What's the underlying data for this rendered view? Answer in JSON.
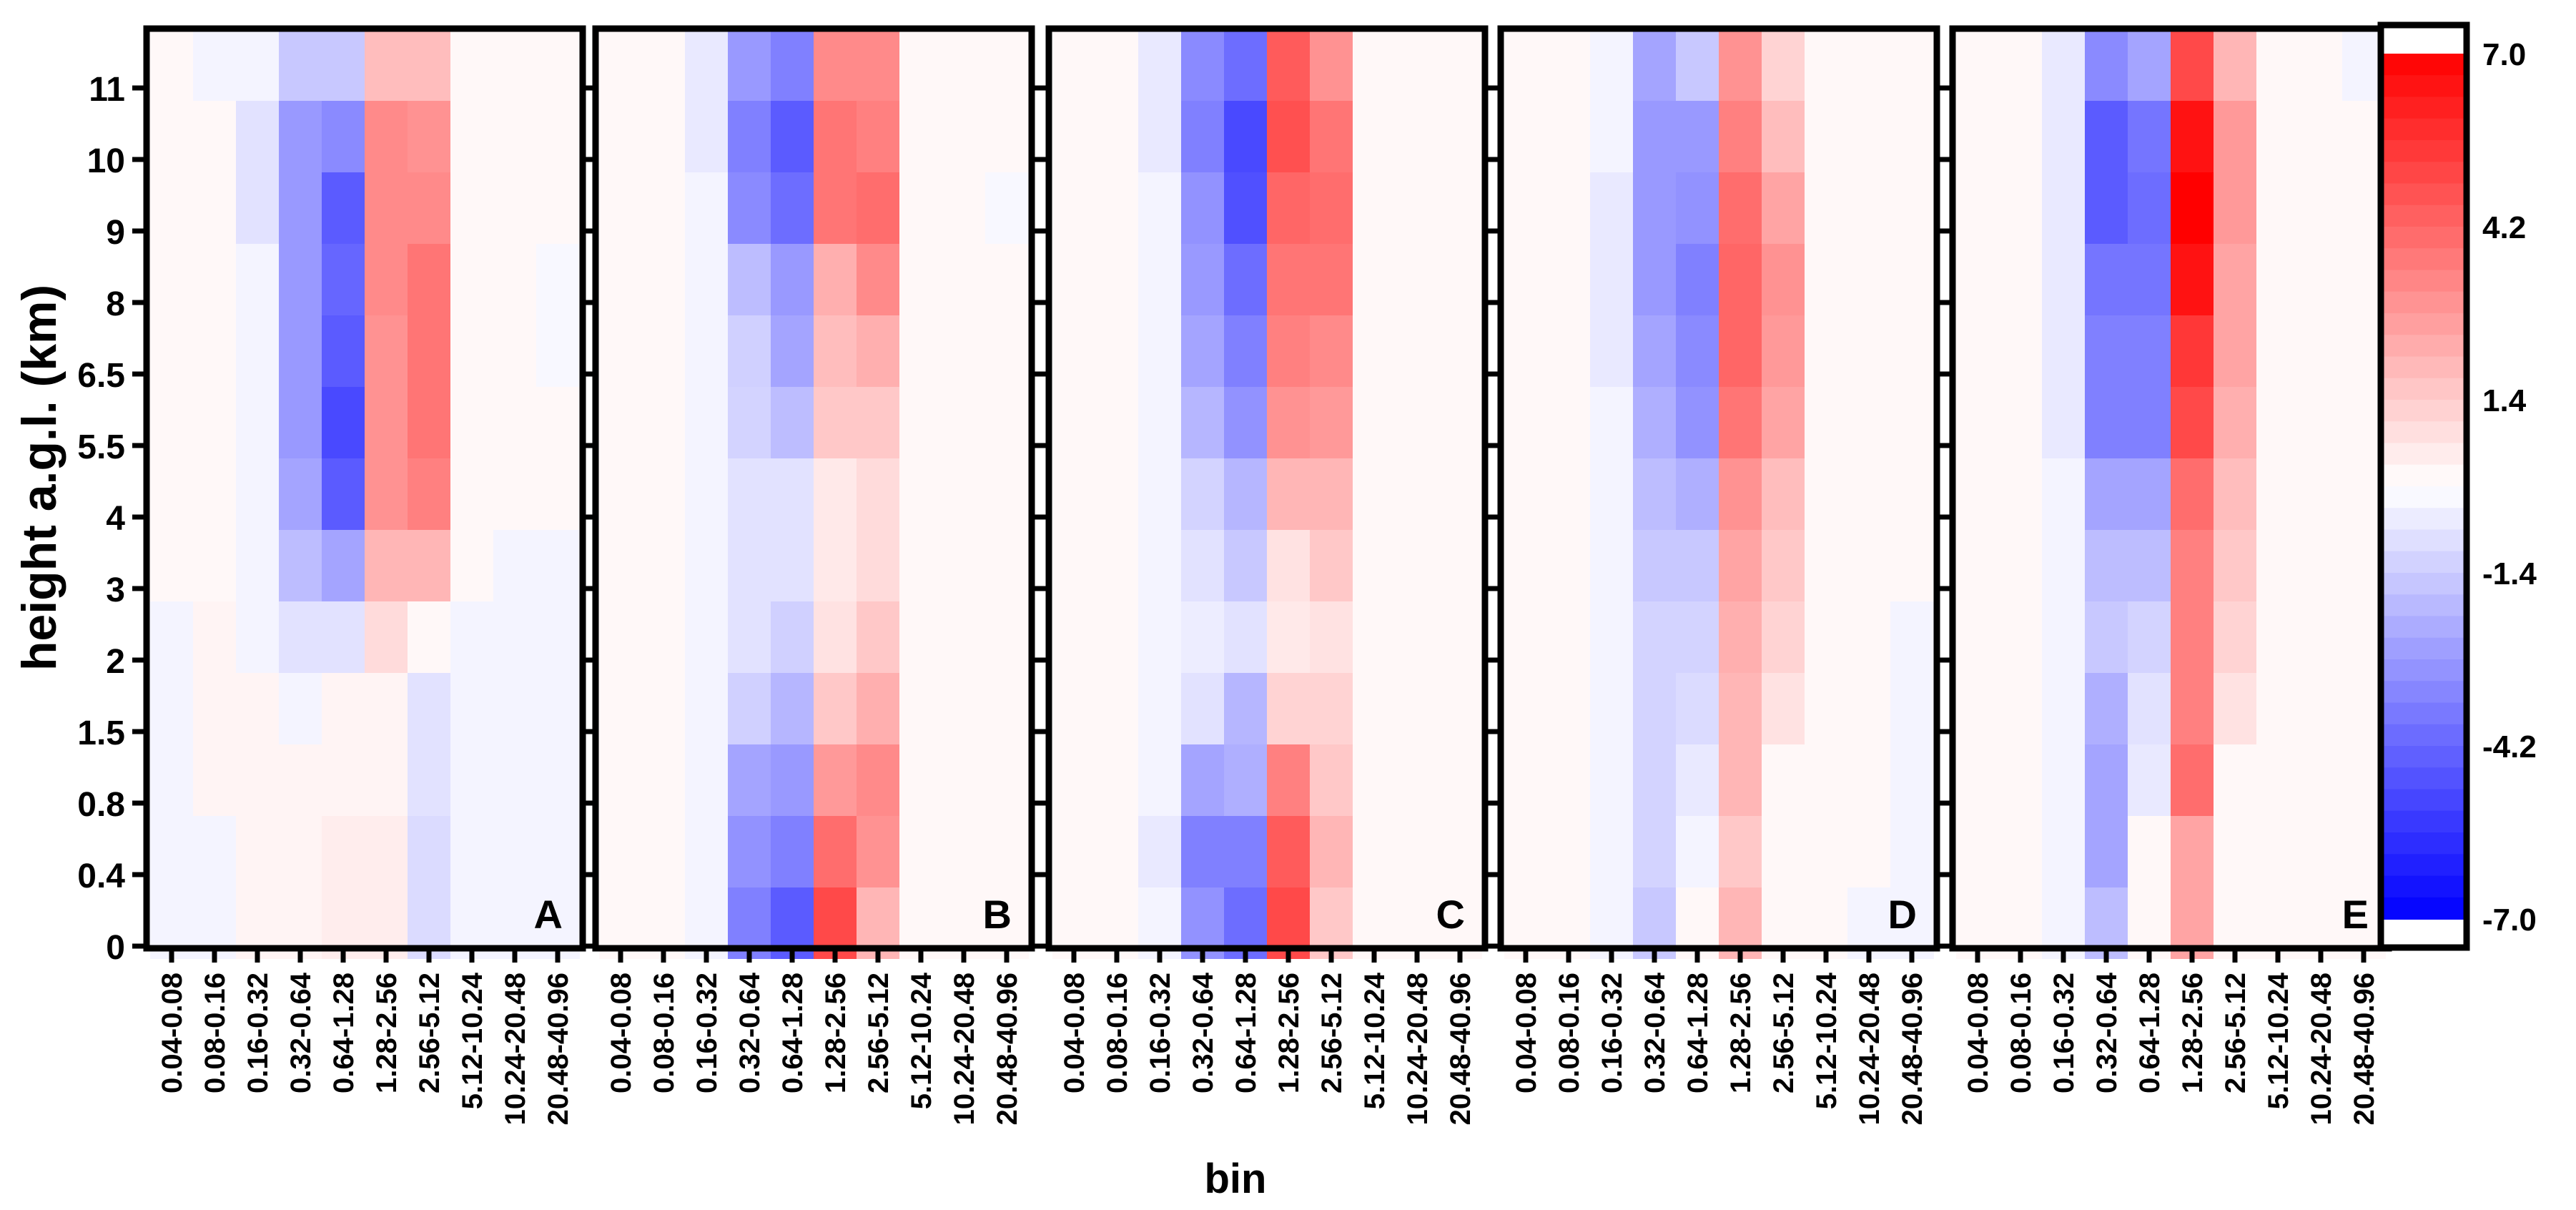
{
  "chart_data": {
    "type": "heatmap",
    "xlabel": "bin",
    "ylabel": "height a.g.l. (km)",
    "x_categories": [
      "0.04-0.08",
      "0.08-0.16",
      "0.16-0.32",
      "0.32-0.64",
      "0.64-1.28",
      "1.28-2.56",
      "2.56-5.12",
      "5.12-10.24",
      "10.24-20.48",
      "20.48-40.96"
    ],
    "y_categories": [
      "0",
      "0.4",
      "0.8",
      "1.5",
      "2",
      "3",
      "4",
      "5.5",
      "6.5",
      "8",
      "9",
      "10",
      "11"
    ],
    "colorbar": {
      "range": [
        -7.0,
        7.0
      ],
      "tick_labels": [
        "7.0",
        "4.2",
        "1.4",
        "-1.4",
        "-4.2",
        "-7.0"
      ],
      "tick_values": [
        7.0,
        4.2,
        1.4,
        -1.4,
        -4.2,
        -7.0
      ],
      "colors": {
        "max": "#ff0000",
        "mid": "#ffffff",
        "min": "#0000ff"
      }
    },
    "panels": [
      {
        "label": "A",
        "rows": [
          [
            -0.3,
            -0.3,
            0.3,
            0.3,
            0.5,
            0.5,
            -1.0,
            -0.3,
            -0.3,
            -0.3
          ],
          [
            -0.3,
            -0.3,
            0.3,
            0.3,
            0.5,
            0.5,
            -1.0,
            -0.3,
            -0.3,
            -0.3
          ],
          [
            -0.3,
            0.3,
            0.3,
            0.3,
            0.3,
            0.3,
            -0.8,
            -0.3,
            -0.3,
            -0.3
          ],
          [
            -0.3,
            0.3,
            0.3,
            -0.3,
            0.3,
            0.3,
            -0.8,
            -0.3,
            -0.3,
            -0.3
          ],
          [
            -0.3,
            0.3,
            -0.3,
            -0.8,
            -0.8,
            1.0,
            0.2,
            -0.3,
            -0.3,
            -0.3
          ],
          [
            0.2,
            0.2,
            -0.3,
            -1.8,
            -2.5,
            2.0,
            2.0,
            0.2,
            -0.3,
            -0.3
          ],
          [
            0.2,
            0.2,
            -0.3,
            -2.5,
            -4.5,
            3.0,
            3.5,
            0.2,
            0.2,
            0.2
          ],
          [
            0.2,
            0.2,
            -0.3,
            -2.8,
            -5.0,
            3.0,
            3.8,
            0.2,
            0.2,
            0.2
          ],
          [
            0.2,
            0.2,
            -0.3,
            -2.8,
            -4.5,
            3.0,
            3.8,
            0.2,
            0.2,
            -0.2
          ],
          [
            0.2,
            0.2,
            -0.3,
            -2.8,
            -4.2,
            3.2,
            3.8,
            0.2,
            0.2,
            -0.2
          ],
          [
            0.2,
            0.2,
            -0.8,
            -2.8,
            -4.5,
            3.2,
            3.2,
            0.2,
            0.2,
            0.2
          ],
          [
            0.2,
            0.2,
            -0.8,
            -2.8,
            -3.2,
            3.2,
            3.0,
            0.2,
            0.2,
            0.2
          ],
          [
            0.2,
            -0.3,
            -0.3,
            -1.5,
            -1.5,
            1.8,
            1.8,
            0.2,
            0.2,
            0.2
          ]
        ]
      },
      {
        "label": "B",
        "rows": [
          [
            0.2,
            0.2,
            -0.3,
            -3.5,
            -4.5,
            5.0,
            2.0,
            0.2,
            0.2,
            0.2
          ],
          [
            0.2,
            0.2,
            -0.3,
            -3.0,
            -3.5,
            4.0,
            3.0,
            0.2,
            0.2,
            0.2
          ],
          [
            0.2,
            0.2,
            -0.3,
            -2.5,
            -2.8,
            2.8,
            3.2,
            0.2,
            0.2,
            0.2
          ],
          [
            0.2,
            0.2,
            -0.3,
            -1.3,
            -2.0,
            1.5,
            2.2,
            0.2,
            0.2,
            0.2
          ],
          [
            0.2,
            0.2,
            -0.3,
            -0.8,
            -1.3,
            0.8,
            1.5,
            0.2,
            0.2,
            0.2
          ],
          [
            0.2,
            0.2,
            -0.3,
            -0.8,
            -0.8,
            0.6,
            1.0,
            0.2,
            0.2,
            0.2
          ],
          [
            0.2,
            0.2,
            -0.3,
            -0.8,
            -0.8,
            0.6,
            1.0,
            0.2,
            0.2,
            0.2
          ],
          [
            0.2,
            0.2,
            -0.3,
            -1.2,
            -1.8,
            1.5,
            1.5,
            0.2,
            0.2,
            0.2
          ],
          [
            0.2,
            0.2,
            -0.3,
            -1.3,
            -2.5,
            1.8,
            2.2,
            0.2,
            0.2,
            0.2
          ],
          [
            0.2,
            0.2,
            -0.3,
            -1.8,
            -2.8,
            2.2,
            3.2,
            0.2,
            0.2,
            0.2
          ],
          [
            0.2,
            0.2,
            -0.3,
            -3.2,
            -4.0,
            3.8,
            4.0,
            0.2,
            0.2,
            -0.2
          ],
          [
            0.2,
            0.2,
            -0.6,
            -3.5,
            -4.5,
            3.8,
            3.5,
            0.2,
            0.2,
            0.2
          ],
          [
            0.2,
            0.2,
            -0.6,
            -2.8,
            -3.5,
            3.2,
            3.2,
            0.2,
            0.2,
            0.2
          ]
        ]
      },
      {
        "label": "C",
        "rows": [
          [
            0.2,
            0.2,
            -0.3,
            -3.0,
            -4.0,
            5.0,
            1.5,
            0.2,
            0.2,
            0.2
          ],
          [
            0.2,
            0.2,
            -0.6,
            -3.5,
            -3.5,
            4.5,
            2.0,
            0.2,
            0.2,
            0.2
          ],
          [
            0.2,
            0.2,
            -0.3,
            -2.5,
            -2.2,
            3.5,
            1.5,
            0.2,
            0.2,
            0.2
          ],
          [
            0.2,
            0.2,
            -0.3,
            -0.8,
            -2.0,
            1.2,
            1.2,
            0.2,
            0.2,
            0.2
          ],
          [
            0.2,
            0.2,
            -0.3,
            -0.5,
            -0.8,
            0.6,
            0.8,
            0.2,
            0.2,
            0.2
          ],
          [
            0.2,
            0.2,
            -0.3,
            -0.8,
            -1.5,
            0.8,
            1.5,
            0.2,
            0.2,
            0.2
          ],
          [
            0.2,
            0.2,
            -0.3,
            -1.2,
            -2.0,
            2.0,
            2.0,
            0.2,
            0.2,
            0.2
          ],
          [
            0.2,
            0.2,
            -0.3,
            -2.0,
            -3.0,
            3.0,
            2.8,
            0.2,
            0.2,
            0.2
          ],
          [
            0.2,
            0.2,
            -0.3,
            -2.5,
            -3.5,
            3.5,
            3.2,
            0.2,
            0.2,
            0.2
          ],
          [
            0.2,
            0.2,
            -0.3,
            -2.8,
            -4.0,
            3.8,
            3.8,
            0.2,
            0.2,
            0.2
          ],
          [
            0.2,
            0.2,
            -0.3,
            -3.0,
            -4.8,
            4.2,
            4.0,
            0.2,
            0.2,
            0.2
          ],
          [
            0.2,
            0.2,
            -0.6,
            -3.5,
            -5.0,
            4.8,
            3.8,
            0.2,
            0.2,
            0.2
          ],
          [
            0.2,
            0.2,
            -0.6,
            -3.2,
            -4.0,
            4.5,
            3.0,
            0.2,
            0.2,
            0.2
          ]
        ]
      },
      {
        "label": "D",
        "rows": [
          [
            0.2,
            0.2,
            -0.3,
            -1.5,
            0.2,
            2.0,
            0.2,
            0.2,
            -0.3,
            -0.3
          ],
          [
            0.2,
            0.2,
            -0.3,
            -1.2,
            -0.3,
            1.5,
            0.2,
            0.2,
            0.2,
            -0.3
          ],
          [
            0.2,
            0.2,
            -0.3,
            -1.2,
            -0.6,
            2.0,
            0.2,
            0.2,
            0.2,
            -0.3
          ],
          [
            0.2,
            0.2,
            -0.3,
            -1.2,
            -1.0,
            2.0,
            0.8,
            0.2,
            0.2,
            -0.3
          ],
          [
            0.2,
            0.2,
            -0.3,
            -1.2,
            -1.2,
            2.2,
            1.2,
            0.2,
            0.2,
            -0.3
          ],
          [
            0.2,
            0.2,
            -0.3,
            -1.5,
            -1.5,
            2.5,
            1.5,
            0.2,
            0.2,
            0.2
          ],
          [
            0.2,
            0.2,
            -0.3,
            -1.8,
            -2.2,
            3.0,
            1.8,
            0.2,
            0.2,
            0.2
          ],
          [
            0.2,
            0.2,
            -0.3,
            -2.2,
            -3.0,
            3.8,
            2.5,
            0.2,
            0.2,
            0.2
          ],
          [
            0.2,
            0.2,
            -0.6,
            -2.5,
            -3.2,
            4.2,
            2.8,
            0.2,
            0.2,
            0.2
          ],
          [
            0.2,
            0.2,
            -0.6,
            -2.8,
            -3.5,
            4.2,
            3.0,
            0.2,
            0.2,
            0.2
          ],
          [
            0.2,
            0.2,
            -0.6,
            -2.8,
            -3.0,
            4.0,
            2.5,
            0.2,
            0.2,
            0.2
          ],
          [
            0.2,
            0.2,
            -0.3,
            -2.8,
            -2.8,
            3.5,
            1.8,
            0.2,
            0.2,
            0.2
          ],
          [
            0.2,
            0.2,
            -0.3,
            -2.5,
            -1.5,
            3.0,
            1.2,
            0.2,
            0.2,
            0.2
          ]
        ]
      },
      {
        "label": "E",
        "rows": [
          [
            0.2,
            0.2,
            -0.3,
            -1.8,
            0.2,
            2.5,
            0.2,
            0.2,
            0.2,
            0.2
          ],
          [
            0.2,
            0.2,
            -0.3,
            -2.5,
            0.2,
            2.5,
            0.2,
            0.2,
            0.2,
            0.2
          ],
          [
            0.2,
            0.2,
            -0.3,
            -2.5,
            -0.6,
            4.0,
            0.2,
            0.2,
            0.2,
            0.2
          ],
          [
            0.2,
            0.2,
            -0.3,
            -2.2,
            -0.8,
            3.5,
            0.8,
            0.2,
            0.2,
            0.2
          ],
          [
            0.2,
            0.2,
            -0.3,
            -1.5,
            -1.2,
            3.5,
            1.2,
            0.2,
            0.2,
            0.2
          ],
          [
            0.2,
            0.2,
            -0.3,
            -1.8,
            -1.8,
            3.5,
            1.5,
            0.2,
            0.2,
            0.2
          ],
          [
            0.2,
            0.2,
            -0.3,
            -2.5,
            -2.5,
            4.0,
            1.8,
            0.2,
            0.2,
            0.2
          ],
          [
            0.2,
            0.2,
            -0.6,
            -3.5,
            -3.5,
            5.0,
            2.2,
            0.2,
            0.2,
            0.2
          ],
          [
            0.2,
            0.2,
            -0.6,
            -3.5,
            -3.5,
            5.5,
            2.5,
            0.2,
            0.2,
            0.2
          ],
          [
            0.2,
            0.2,
            -0.6,
            -3.8,
            -3.8,
            6.5,
            2.5,
            0.2,
            0.2,
            0.2
          ],
          [
            0.2,
            0.2,
            -0.6,
            -4.5,
            -4.0,
            7.0,
            2.8,
            0.2,
            0.2,
            0.2
          ],
          [
            0.2,
            0.2,
            -0.6,
            -4.5,
            -3.8,
            6.5,
            2.8,
            0.2,
            0.2,
            0.2
          ],
          [
            0.2,
            0.2,
            -0.6,
            -3.2,
            -2.5,
            5.0,
            2.0,
            0.2,
            0.2,
            -0.3
          ]
        ]
      }
    ]
  }
}
